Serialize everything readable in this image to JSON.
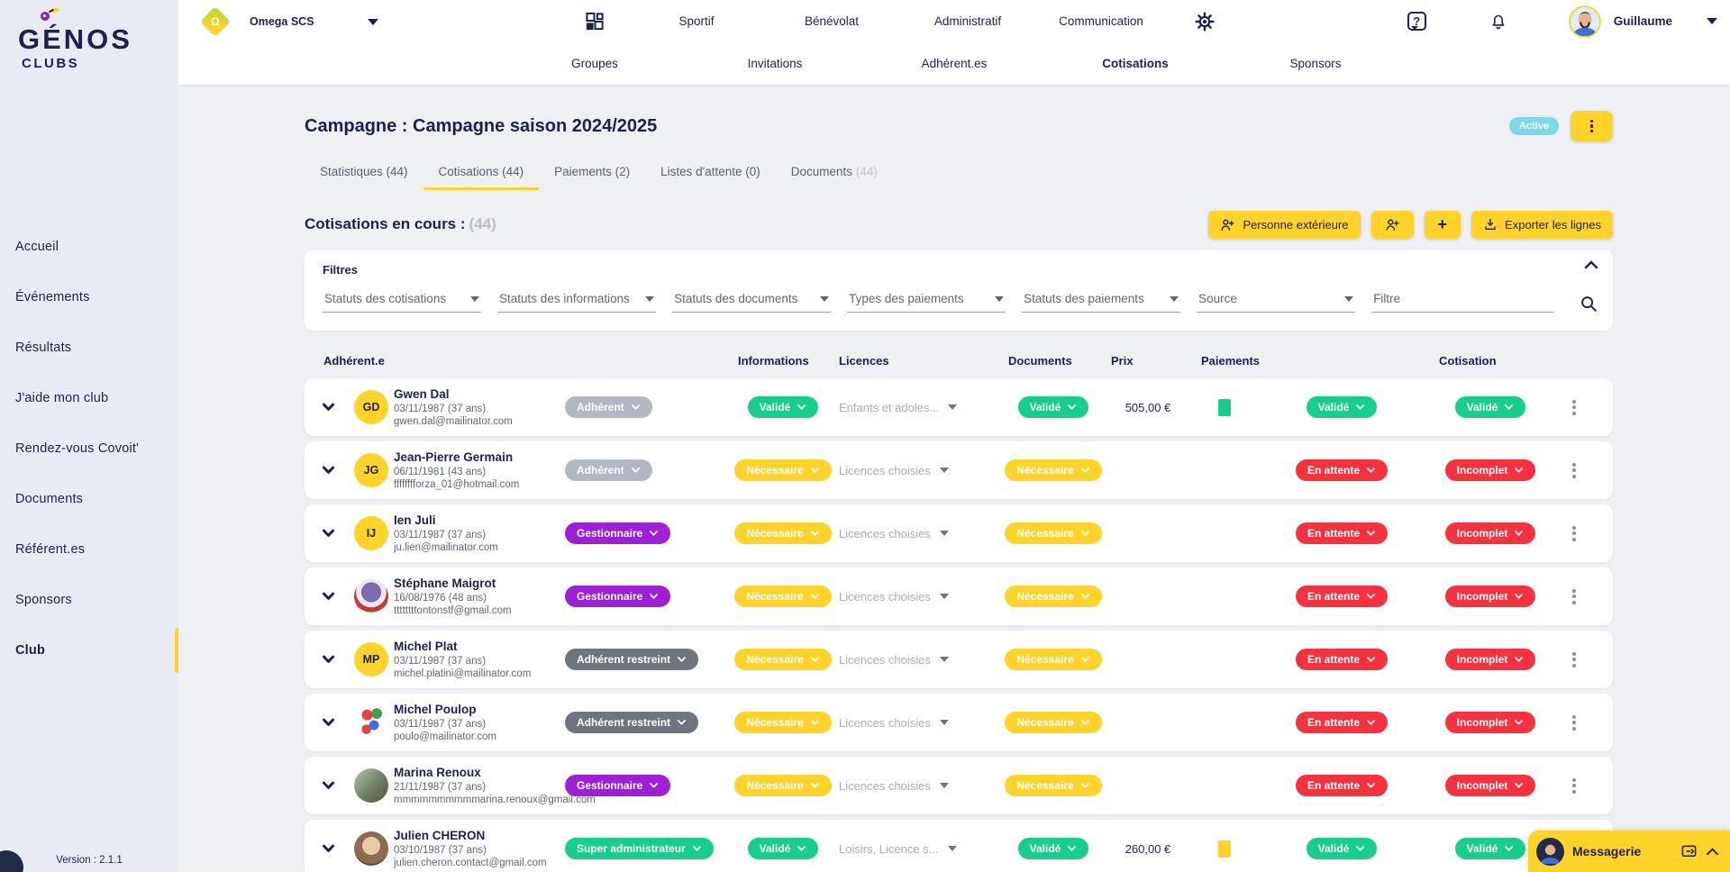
{
  "brand": {
    "name": "GÉNOS",
    "suffix": "CLUBS"
  },
  "sidebar": {
    "items": [
      {
        "label": "Accueil",
        "active": false
      },
      {
        "label": "Événements",
        "active": false
      },
      {
        "label": "Résultats",
        "active": false
      },
      {
        "label": "J'aide mon club",
        "active": false
      },
      {
        "label": "Rendez-vous Covoit'",
        "active": false
      },
      {
        "label": "Documents",
        "active": false
      },
      {
        "label": "Référent.es",
        "active": false
      },
      {
        "label": "Sponsors",
        "active": false
      },
      {
        "label": "Club",
        "active": true
      }
    ],
    "version": "Version : 2.1.1"
  },
  "header": {
    "club": "Omega SCS",
    "club_logo_letter": "Ω",
    "nav": [
      "Sportif",
      "Bénévolat",
      "Administratif",
      "Communication"
    ],
    "subnav": [
      {
        "label": "Groupes",
        "active": false
      },
      {
        "label": "Invitations",
        "active": false
      },
      {
        "label": "Adhérent.es",
        "active": false
      },
      {
        "label": "Cotisations",
        "active": true
      },
      {
        "label": "Sponsors",
        "active": false
      }
    ],
    "user": "Guillaume"
  },
  "campaign": {
    "title": "Campagne : Campagne saison 2024/2025",
    "status": "Active",
    "tabs": [
      {
        "label": "Statistiques (44)",
        "active": false
      },
      {
        "label": "Cotisations (44)",
        "active": true
      },
      {
        "label": "Paiements (2)",
        "active": false
      },
      {
        "label": "Listes d'attente (0)",
        "active": false
      },
      {
        "label": "Documents",
        "muted_count": "(44)",
        "active": false
      }
    ]
  },
  "section": {
    "title": "Cotisations en cours :",
    "count": "(44)",
    "buttons": {
      "external": "Personne extérieure",
      "add": "+",
      "export": "Exporter les lignes"
    }
  },
  "filters": {
    "title": "Filtres",
    "selects": [
      "Statuts des cotisations",
      "Statuts des informations",
      "Statuts des documents",
      "Types des paiements",
      "Statuts des paiements",
      "Source"
    ],
    "text_placeholder": "Filtre"
  },
  "table": {
    "headers": [
      "Adhérent.e",
      "Informations",
      "Licences",
      "Documents",
      "Prix",
      "Paiements",
      "Cotisation"
    ],
    "rows": [
      {
        "name": "Gwen Dal",
        "dob": "03/11/1987 (37 ans)",
        "email": "gwen.dal@mailinator.com",
        "avatar": {
          "kind": "initials",
          "initials": "GD"
        },
        "role": {
          "label": "Adhérent",
          "color": "gray"
        },
        "informations": {
          "label": "Validé",
          "color": "green"
        },
        "licences": "Enfants et adoles...",
        "documents": {
          "label": "Validé",
          "color": "green"
        },
        "prix": "505,00 €",
        "payment_square": "green",
        "paiements": {
          "label": "Validé",
          "color": "green"
        },
        "cotisation": {
          "label": "Validé",
          "color": "green"
        }
      },
      {
        "name": "Jean-Pierre Germain",
        "dob": "06/11/1981 (43 ans)",
        "email": "fffffffforza_01@hotmail.com",
        "avatar": {
          "kind": "initials",
          "initials": "JG"
        },
        "role": {
          "label": "Adhérent",
          "color": "gray"
        },
        "informations": {
          "label": "Nécessaire",
          "color": "yellow"
        },
        "licences": "Licences choisies",
        "documents": {
          "label": "Nécessaire",
          "color": "yellow"
        },
        "prix": "",
        "payment_square": "",
        "paiements": {
          "label": "En attente",
          "color": "red"
        },
        "cotisation": {
          "label": "Incomplet",
          "color": "red"
        }
      },
      {
        "name": "Ien Juli",
        "dob": "03/11/1987 (37 ans)",
        "email": "ju.lien@mailinator.com",
        "avatar": {
          "kind": "initials",
          "initials": "IJ"
        },
        "role": {
          "label": "Gestionnaire",
          "color": "purple"
        },
        "informations": {
          "label": "Nécessaire",
          "color": "yellow"
        },
        "licences": "Licences choisies",
        "documents": {
          "label": "Nécessaire",
          "color": "yellow"
        },
        "prix": "",
        "payment_square": "",
        "paiements": {
          "label": "En attente",
          "color": "red"
        },
        "cotisation": {
          "label": "Incomplet",
          "color": "red"
        }
      },
      {
        "name": "Stéphane Maigrot",
        "dob": "16/08/1976 (48 ans)",
        "email": "ttttttttontonstf@gmail.com",
        "avatar": {
          "kind": "photo",
          "photo": "club-badge"
        },
        "role": {
          "label": "Gestionnaire",
          "color": "purple"
        },
        "informations": {
          "label": "Nécessaire",
          "color": "yellow"
        },
        "licences": "Licences choisies",
        "documents": {
          "label": "Nécessaire",
          "color": "yellow"
        },
        "prix": "",
        "payment_square": "",
        "paiements": {
          "label": "En attente",
          "color": "red"
        },
        "cotisation": {
          "label": "Incomplet",
          "color": "red"
        }
      },
      {
        "name": "Michel Plat",
        "dob": "03/11/1987 (37 ans)",
        "email": "michel.platini@mailinator.com",
        "avatar": {
          "kind": "initials",
          "initials": "MP"
        },
        "role": {
          "label": "Adhérent restreint",
          "color": "darkgray"
        },
        "informations": {
          "label": "Nécessaire",
          "color": "yellow"
        },
        "licences": "Licences choisies",
        "documents": {
          "label": "Nécessaire",
          "color": "yellow"
        },
        "prix": "",
        "payment_square": "",
        "paiements": {
          "label": "En attente",
          "color": "red"
        },
        "cotisation": {
          "label": "Incomplet",
          "color": "red"
        }
      },
      {
        "name": "Michel Poulop",
        "dob": "03/11/1987 (37 ans)",
        "email": "poulo@mailinator.com",
        "avatar": {
          "kind": "photo",
          "photo": "balloons"
        },
        "role": {
          "label": "Adhérent restreint",
          "color": "darkgray"
        },
        "informations": {
          "label": "Nécessaire",
          "color": "yellow"
        },
        "licences": "Licences choisies",
        "documents": {
          "label": "Nécessaire",
          "color": "yellow"
        },
        "prix": "",
        "payment_square": "",
        "paiements": {
          "label": "En attente",
          "color": "red"
        },
        "cotisation": {
          "label": "Incomplet",
          "color": "red"
        }
      },
      {
        "name": "Marina Renoux",
        "dob": "21/11/1987 (37 ans)",
        "email": "mmmmmmmmmmarina.renoux@gmail.com",
        "avatar": {
          "kind": "photo",
          "photo": "outdoor"
        },
        "role": {
          "label": "Gestionnaire",
          "color": "purple"
        },
        "informations": {
          "label": "Nécessaire",
          "color": "yellow"
        },
        "licences": "Licences choisies",
        "documents": {
          "label": "Nécessaire",
          "color": "yellow"
        },
        "prix": "",
        "payment_square": "",
        "paiements": {
          "label": "En attente",
          "color": "red"
        },
        "cotisation": {
          "label": "Incomplet",
          "color": "red"
        }
      },
      {
        "name": "Julien CHERON",
        "dob": "03/10/1987 (37 ans)",
        "email": "julien.cheron.contact@gmail.com",
        "avatar": {
          "kind": "photo",
          "photo": "portrait"
        },
        "role": {
          "label": "Super administrateur",
          "color": "green"
        },
        "informations": {
          "label": "Validé",
          "color": "green"
        },
        "licences": "Loisirs, Licence s...",
        "documents": {
          "label": "Validé",
          "color": "green"
        },
        "prix": "260,00 €",
        "payment_square": "yellow",
        "paiements": {
          "label": "Validé",
          "color": "green"
        },
        "cotisation": {
          "label": "Validé",
          "color": "green"
        }
      }
    ]
  },
  "messenger": {
    "label": "Messagerie"
  },
  "colors": {
    "yellow": "#ffd32a",
    "green": "#17ce8d",
    "red": "#f5323e",
    "purple": "#9d1fd6",
    "gray": "#b1b8c4",
    "darkgray": "#6e757e",
    "cyan": "#7cd9e8",
    "navy": "#1b2150"
  }
}
